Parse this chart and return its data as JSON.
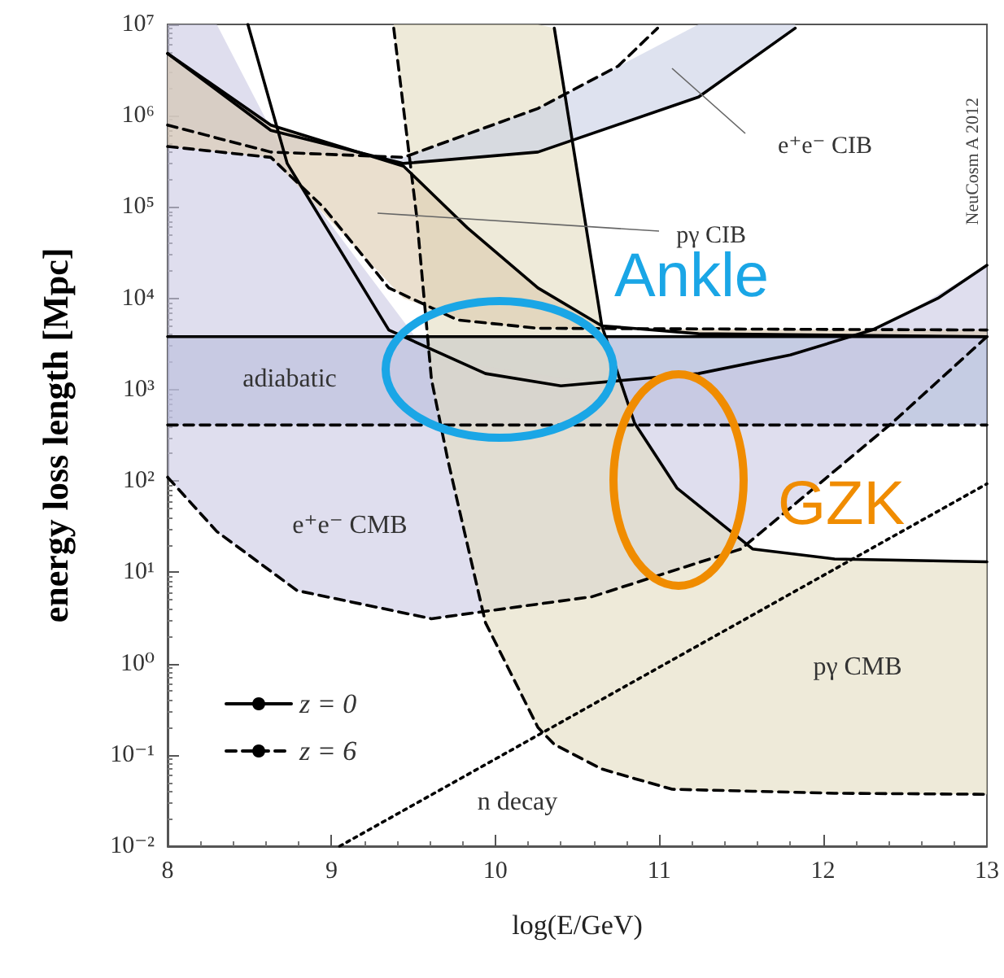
{
  "chart_data": {
    "type": "line",
    "xlabel": "log(E/GeV)",
    "ylabel": "energy loss length [Mpc]",
    "log": "y",
    "xlim": [
      8,
      13
    ],
    "ylim": [
      0.01,
      10000000
    ],
    "xticks": [
      8,
      9,
      10,
      11,
      12,
      13
    ],
    "yticks": [
      {
        "value": 0.01,
        "label": "10⁻²"
      },
      {
        "value": 0.1,
        "label": "10⁻¹"
      },
      {
        "value": 1,
        "label": "10⁰"
      },
      {
        "value": 10,
        "label": "10¹"
      },
      {
        "value": 100,
        "label": "10²"
      },
      {
        "value": 1000,
        "label": "10³"
      },
      {
        "value": 10000,
        "label": "10⁴"
      },
      {
        "value": 100000,
        "label": "10⁵"
      },
      {
        "value": 1000000,
        "label": "10⁶"
      },
      {
        "value": 10000000,
        "label": "10⁷"
      }
    ],
    "legend": "bottom left",
    "grid": false,
    "series": [
      {
        "name": "z = 0",
        "color": "#000000",
        "line_style": "solid",
        "x": [
          8,
          13
        ],
        "values": [
          3800,
          3800
        ],
        "lower": [
          410,
          410
        ],
        "upper": [
          3800,
          3800
        ]
      },
      {
        "name": "z = 6",
        "color": "#000000",
        "line_style": "dashed",
        "x": [
          8,
          13
        ],
        "values": [
          410,
          410
        ]
      },
      {
        "color": "#000000",
        "line_style": "solid",
        "x": [
          8.49,
          8.73,
          9.35,
          9.94,
          10.4,
          11.24,
          11.8,
          12.3,
          12.7,
          13
        ],
        "values": [
          10000000,
          300000,
          4500,
          1500,
          1100,
          1500,
          2400,
          4500,
          10000,
          23000
        ]
      },
      {
        "color": "#000000",
        "line_style": "dashed",
        "x": [
          8,
          8.3,
          8.79,
          9.61,
          10.59,
          11.5,
          12.42,
          13
        ],
        "values": [
          110,
          28,
          6.3,
          3.1,
          5.4,
          18,
          430,
          3800
        ],
        "lower": [
          110,
          28,
          6.3,
          3.1,
          5.4,
          18,
          430,
          3800
        ],
        "upper": [
          10000000,
          10000000,
          200000,
          2200,
          1200,
          1800,
          5500,
          23000
        ]
      },
      {
        "color": "#000000",
        "line_style": "solid",
        "x": [
          10.36,
          10.65,
          10.85,
          11.11,
          11.57,
          12.07,
          13
        ],
        "values": [
          9100000,
          5000,
          430,
          83,
          18,
          14,
          13
        ]
      },
      {
        "color": "#000000",
        "line_style": "dashed",
        "x": [
          9.38,
          9.52,
          9.61,
          9.71,
          9.94,
          10.26,
          10.36,
          10.65,
          10.85,
          11.08,
          11.57,
          12.07,
          13
        ],
        "values": [
          9100000,
          79000,
          1300,
          170,
          2.8,
          0.2,
          0.13,
          0.07,
          0.055,
          0.042,
          0.04,
          0.038,
          0.037
        ],
        "lower": [
          9100000,
          79000,
          1300,
          170,
          2.8,
          0.2,
          0.13,
          0.07,
          0.055,
          0.042,
          0.04,
          0.038,
          0.037
        ],
        "upper": [
          10000000,
          10000000,
          10000000,
          10000000,
          10000000,
          10000000,
          9100000,
          5000,
          430,
          95,
          18,
          14,
          13
        ]
      },
      {
        "color": "#000000",
        "line_style": "solid",
        "x": [
          8,
          8.63,
          9.44,
          10.26,
          11.24,
          11.83
        ],
        "values": [
          4800000,
          690000,
          300000,
          400000,
          1600000,
          9100000
        ],
        "lower": [
          790000,
          400000,
          350000,
          1200000,
          10000000,
          10000000
        ],
        "upper": [
          4800000,
          690000,
          300000,
          400000,
          1600000,
          9100000
        ]
      },
      {
        "color": "#000000",
        "line_style": "dashed",
        "x": [
          8,
          8.63,
          9.44,
          10.26,
          10.75,
          10.99
        ],
        "values": [
          790000,
          400000,
          350000,
          1200000,
          3500000,
          9100000
        ]
      },
      {
        "color": "#000000",
        "line_style": "solid",
        "x": [
          8,
          8.63,
          9.44,
          9.83,
          10.26,
          10.65,
          11.24,
          13
        ],
        "values": [
          4800000,
          790000,
          280000,
          59000,
          13000,
          5000,
          4100,
          3800
        ],
        "lower": [
          460000,
          350000,
          10000,
          5600,
          4700,
          4600,
          4600,
          4500
        ],
        "upper": [
          4800000,
          790000,
          280000,
          59000,
          13000,
          5000,
          4100,
          3800
        ]
      },
      {
        "color": "#000000",
        "line_style": "dashed",
        "x": [
          8,
          8.63,
          8.95,
          9.35,
          9.77,
          10.26,
          13
        ],
        "values": [
          460000,
          350000,
          100000,
          13000,
          5800,
          4700,
          4500
        ]
      },
      {
        "color": "#000000",
        "line_style": "dotted",
        "x": [
          9.05,
          13
        ],
        "values": [
          0.01,
          93
        ]
      }
    ],
    "annotations": [
      "adiabatic",
      "e⁺e⁻ CMB",
      "pγ CMB",
      "n decay",
      "e⁺e⁻ CIB",
      "pγ CIB",
      "Ankle",
      "GZK",
      "NeuCosm A 2012"
    ]
  }
}
